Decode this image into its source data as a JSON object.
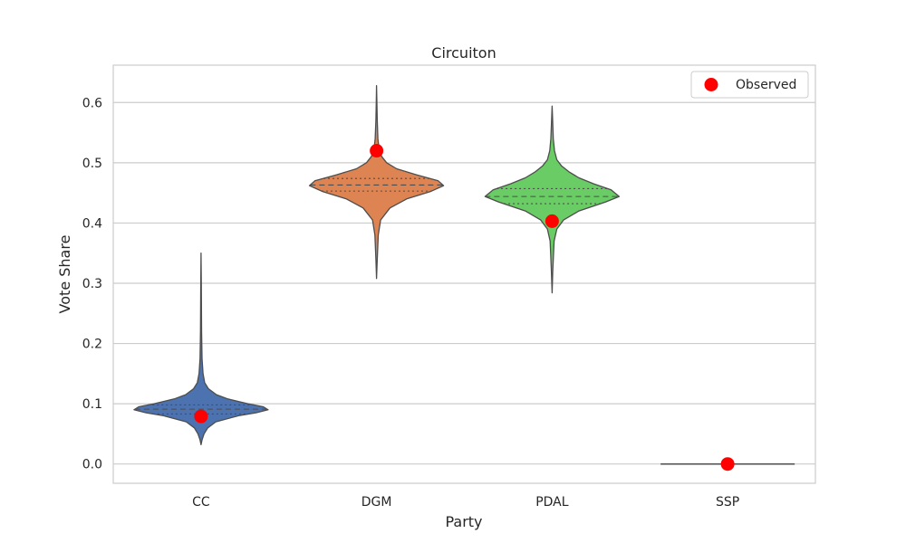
{
  "chart_data": {
    "type": "violin",
    "title": "Circuiton",
    "xlabel": "Party",
    "ylabel": "Vote Share",
    "ylim": [
      -0.032,
      0.662
    ],
    "yticks": [
      0.0,
      0.1,
      0.2,
      0.3,
      0.4,
      0.5,
      0.6
    ],
    "ytick_labels": [
      "0.0",
      "0.1",
      "0.2",
      "0.3",
      "0.4",
      "0.5",
      "0.6"
    ],
    "grid": "horizontal",
    "legend": {
      "position": "top-right",
      "entries": [
        "Observed"
      ]
    },
    "categories": [
      "CC",
      "DGM",
      "PDAL",
      "SSP"
    ],
    "violins": [
      {
        "category": "CC",
        "color": "#4c72b0",
        "min": 0.032,
        "max": 0.35,
        "median": 0.091,
        "q1": 0.083,
        "q3": 0.098,
        "profile": [
          [
            0.032,
            0.0
          ],
          [
            0.04,
            0.015
          ],
          [
            0.05,
            0.045
          ],
          [
            0.06,
            0.1
          ],
          [
            0.07,
            0.22
          ],
          [
            0.08,
            0.56
          ],
          [
            0.085,
            0.82
          ],
          [
            0.09,
            1.0
          ],
          [
            0.095,
            0.93
          ],
          [
            0.1,
            0.7
          ],
          [
            0.108,
            0.4
          ],
          [
            0.115,
            0.23
          ],
          [
            0.125,
            0.11
          ],
          [
            0.135,
            0.055
          ],
          [
            0.15,
            0.03
          ],
          [
            0.175,
            0.015
          ],
          [
            0.22,
            0.008
          ],
          [
            0.3,
            0.004
          ],
          [
            0.35,
            0.0
          ]
        ]
      },
      {
        "category": "DGM",
        "color": "#dd8452",
        "min": 0.308,
        "max": 0.628,
        "median": 0.463,
        "q1": 0.453,
        "q3": 0.474,
        "profile": [
          [
            0.308,
            0.0
          ],
          [
            0.34,
            0.01
          ],
          [
            0.38,
            0.025
          ],
          [
            0.405,
            0.06
          ],
          [
            0.425,
            0.2
          ],
          [
            0.44,
            0.45
          ],
          [
            0.452,
            0.8
          ],
          [
            0.462,
            1.0
          ],
          [
            0.47,
            0.92
          ],
          [
            0.48,
            0.6
          ],
          [
            0.49,
            0.3
          ],
          [
            0.5,
            0.15
          ],
          [
            0.51,
            0.08
          ],
          [
            0.52,
            0.04
          ],
          [
            0.54,
            0.02
          ],
          [
            0.57,
            0.01
          ],
          [
            0.6,
            0.005
          ],
          [
            0.628,
            0.0
          ]
        ]
      },
      {
        "category": "PDAL",
        "color": "#6acc64",
        "min": 0.284,
        "max": 0.594,
        "median": 0.444,
        "q1": 0.432,
        "q3": 0.457,
        "profile": [
          [
            0.284,
            0.0
          ],
          [
            0.32,
            0.01
          ],
          [
            0.37,
            0.03
          ],
          [
            0.39,
            0.07
          ],
          [
            0.405,
            0.17
          ],
          [
            0.42,
            0.4
          ],
          [
            0.435,
            0.8
          ],
          [
            0.444,
            1.0
          ],
          [
            0.455,
            0.88
          ],
          [
            0.465,
            0.62
          ],
          [
            0.475,
            0.4
          ],
          [
            0.485,
            0.25
          ],
          [
            0.495,
            0.14
          ],
          [
            0.505,
            0.07
          ],
          [
            0.52,
            0.035
          ],
          [
            0.54,
            0.018
          ],
          [
            0.57,
            0.008
          ],
          [
            0.594,
            0.0
          ]
        ]
      },
      {
        "category": "SSP",
        "color": "#c44e52",
        "min": 0.0,
        "max": 0.0,
        "median": 0.0,
        "q1": 0.0,
        "q3": 0.0,
        "profile": []
      }
    ],
    "observed": [
      {
        "category": "CC",
        "value": 0.079
      },
      {
        "category": "DGM",
        "value": 0.52
      },
      {
        "category": "PDAL",
        "value": 0.403
      },
      {
        "category": "SSP",
        "value": 0.0
      }
    ],
    "observed_color": "#ff0000"
  }
}
